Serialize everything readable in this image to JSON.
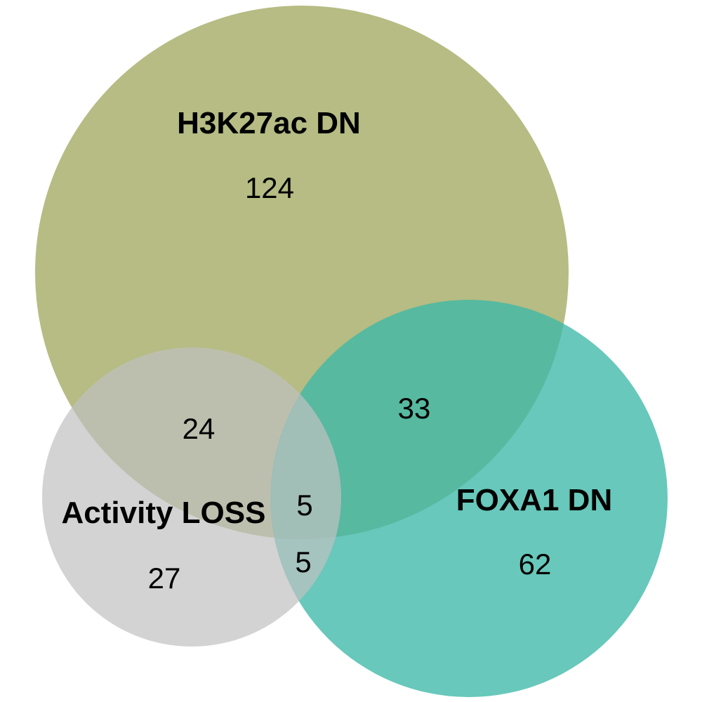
{
  "venn": {
    "sets": [
      {
        "id": "h3k27ac",
        "label": "H3K27ac DN",
        "color": "#a6ad68"
      },
      {
        "id": "foxa1",
        "label": "FOXA1 DN",
        "color": "#3cb8a8"
      },
      {
        "id": "activity",
        "label": "Activity LOSS",
        "color": "#c0c0c0"
      }
    ],
    "regions": {
      "h3k27ac_only": "124",
      "h3k27ac_foxa1": "33",
      "h3k27ac_activity": "24",
      "all_three": "5",
      "foxa1_activity": "5",
      "activity_only": "27",
      "foxa1_only": "62"
    }
  }
}
